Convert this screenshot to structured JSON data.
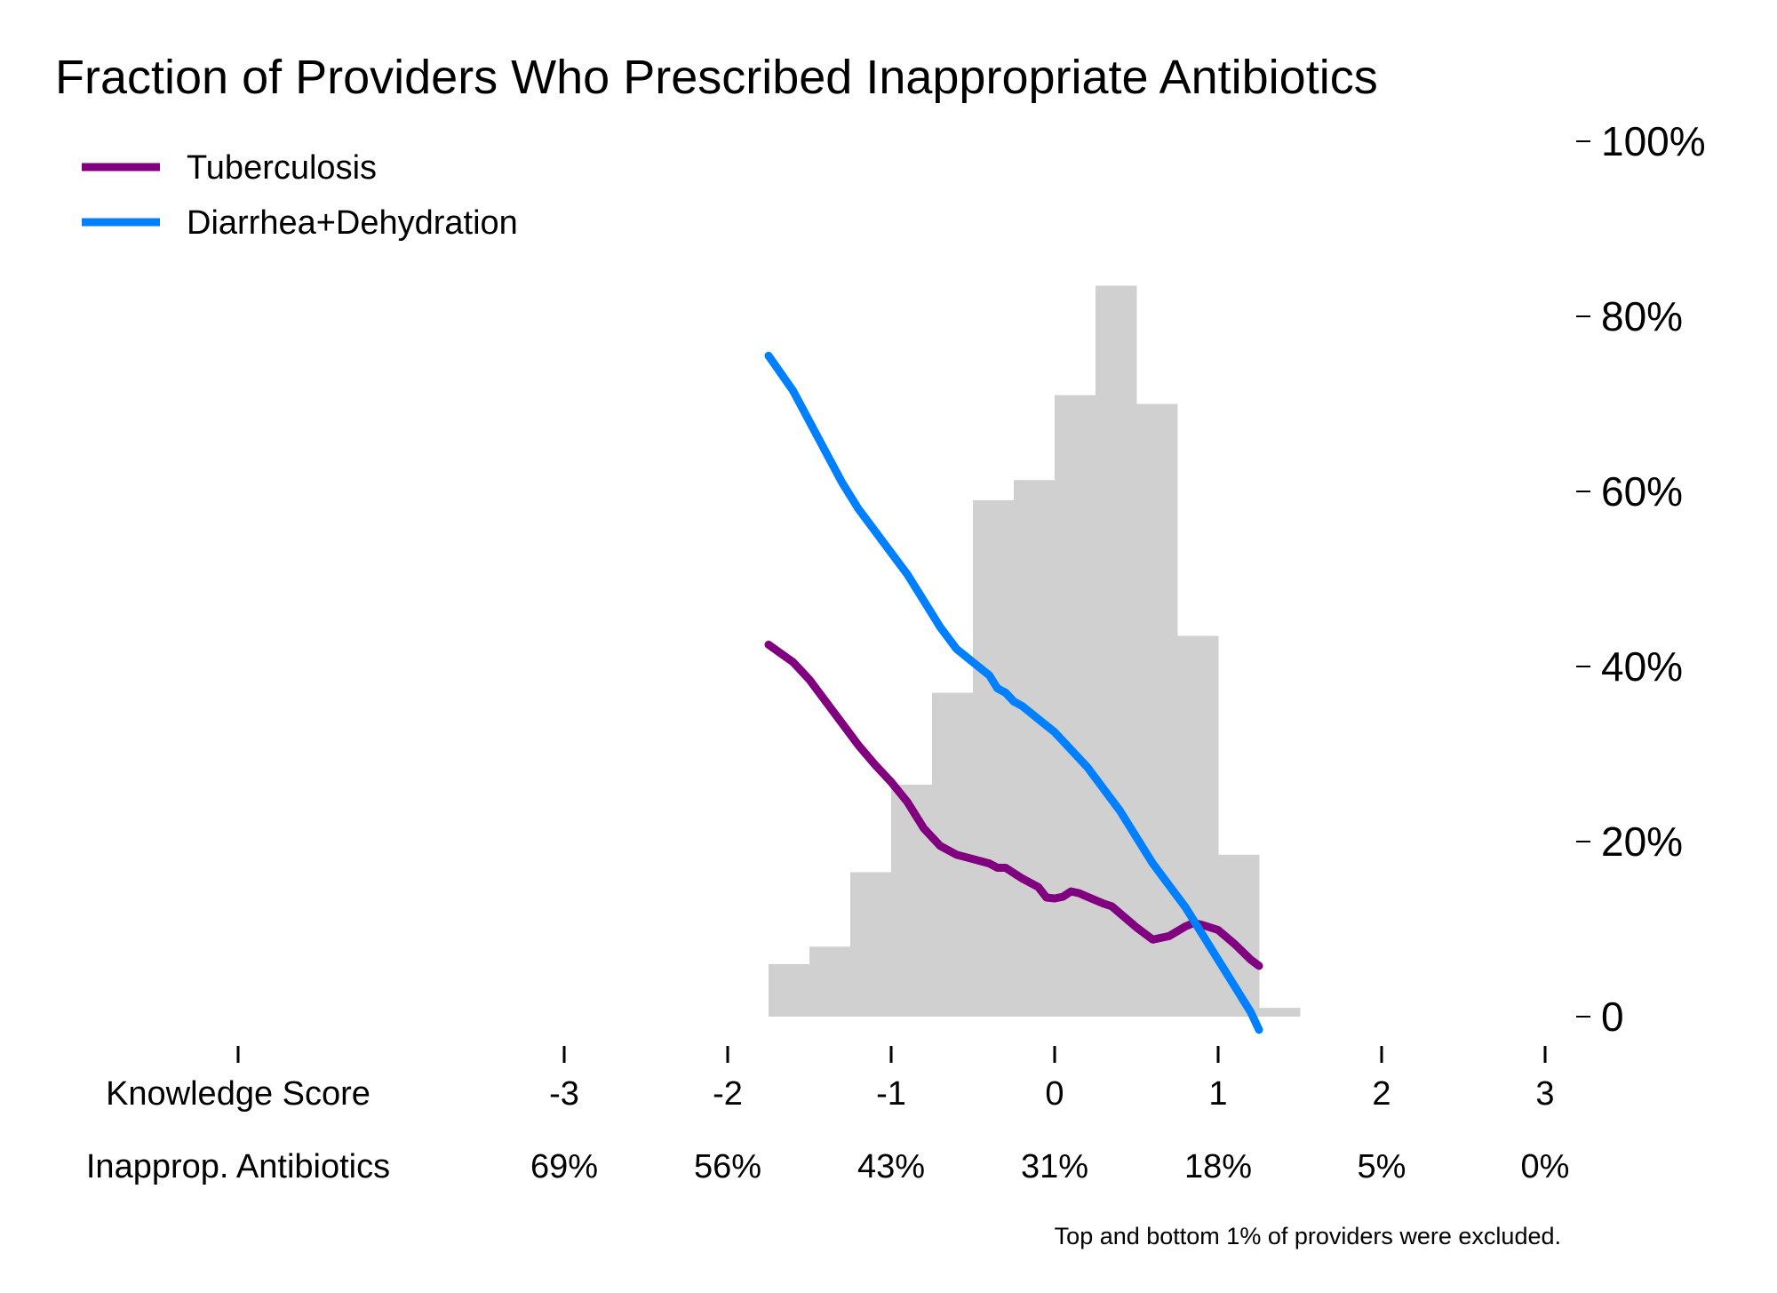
{
  "chart_data": {
    "type": "line",
    "title": "Fraction of Providers Who Prescribed Inappropriate Antibiotics",
    "xlabel": "Knowledge Score",
    "ylabel": "",
    "xlim": [
      -4,
      3
    ],
    "ylim": [
      0,
      100
    ],
    "x_ticks": [
      -3,
      -2,
      -1,
      0,
      1,
      2,
      3
    ],
    "x_tick_labels": [
      "-3",
      "-2",
      "-1",
      "0",
      "1",
      "2",
      "3"
    ],
    "y_ticks": [
      0,
      20,
      40,
      60,
      80,
      100
    ],
    "y_tick_labels": [
      "0",
      "20%",
      "40%",
      "60%",
      "80%",
      "100%"
    ],
    "y_axis_position": "right",
    "grid": false,
    "legend_position": "top-left",
    "secondary_row": {
      "label": "Inapprop. Antibiotics",
      "values": [
        "69%",
        "56%",
        "43%",
        "31%",
        "18%",
        "5%",
        "0%"
      ]
    },
    "note": "Top and bottom 1% of providers were excluded.",
    "series": [
      {
        "name": "Tuberculosis",
        "color": "#800080",
        "x": [
          -1.75,
          -1.6,
          -1.5,
          -1.4,
          -1.3,
          -1.2,
          -1.1,
          -1.0,
          -0.9,
          -0.8,
          -0.7,
          -0.6,
          -0.5,
          -0.4,
          -0.35,
          -0.3,
          -0.2,
          -0.1,
          -0.05,
          0.0,
          0.05,
          0.1,
          0.15,
          0.2,
          0.25,
          0.3,
          0.35,
          0.4,
          0.5,
          0.6,
          0.7,
          0.8,
          0.85,
          0.9,
          1.0,
          1.1,
          1.2,
          1.25
        ],
        "y": [
          42.5,
          40.5,
          38.5,
          36,
          33.5,
          31,
          28.8,
          26.8,
          24.5,
          21.5,
          19.5,
          18.5,
          18,
          17.5,
          17,
          17,
          15.8,
          14.8,
          13.6,
          13.5,
          13.7,
          14.3,
          14.1,
          13.7,
          13.3,
          12.9,
          12.6,
          11.8,
          10.2,
          8.8,
          9.2,
          10.3,
          10.7,
          10.5,
          9.9,
          8.3,
          6.5,
          5.8
        ]
      },
      {
        "name": "Diarrhea+Dehydration",
        "color": "#0080ff",
        "x": [
          -1.75,
          -1.6,
          -1.5,
          -1.4,
          -1.3,
          -1.2,
          -1.1,
          -1.0,
          -0.9,
          -0.8,
          -0.7,
          -0.6,
          -0.5,
          -0.4,
          -0.35,
          -0.3,
          -0.25,
          -0.2,
          -0.1,
          0.0,
          0.1,
          0.2,
          0.3,
          0.4,
          0.5,
          0.6,
          0.7,
          0.8,
          0.9,
          1.0,
          1.1,
          1.2,
          1.25
        ],
        "y": [
          75.5,
          71.5,
          68,
          64.5,
          61,
          58,
          55.5,
          53,
          50.5,
          47.5,
          44.5,
          42,
          40.5,
          39,
          37.5,
          37,
          36,
          35.5,
          34,
          32.5,
          30.5,
          28.5,
          26,
          23.5,
          20.5,
          17.5,
          15,
          12.5,
          9.5,
          6.5,
          3.5,
          0.5,
          -1.5
        ]
      }
    ],
    "histogram": {
      "color": "#d0d0d0",
      "bin_width": 0.25,
      "bin_starts": [
        -1.75,
        -1.5,
        -1.25,
        -1.0,
        -0.75,
        -0.5,
        -0.25,
        0.0,
        0.25,
        0.5,
        0.75,
        1.0,
        1.25
      ],
      "heights": [
        6,
        8,
        16.5,
        26.5,
        37,
        59,
        61.3,
        71,
        83.5,
        70,
        43.5,
        18.5,
        1
      ]
    }
  }
}
